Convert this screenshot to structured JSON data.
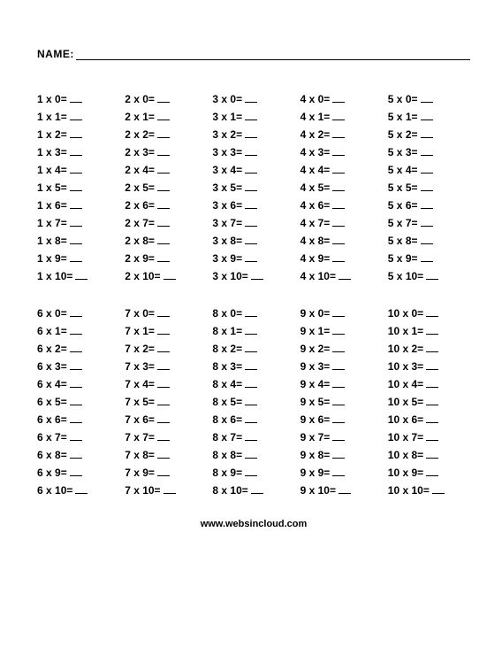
{
  "name_label": "NAME:",
  "footer": "www.websincloud.com",
  "op_symbol": "x",
  "eq_symbol": "=",
  "font_size_pt": 9,
  "font_weight": "bold",
  "text_color": "#000000",
  "background_color": "#ffffff",
  "blocks": [
    {
      "columns": [
        {
          "multiplier": 1,
          "multiplicands": [
            0,
            1,
            2,
            3,
            4,
            5,
            6,
            7,
            8,
            9,
            10
          ]
        },
        {
          "multiplier": 2,
          "multiplicands": [
            0,
            1,
            2,
            3,
            4,
            5,
            6,
            7,
            8,
            9,
            10
          ]
        },
        {
          "multiplier": 3,
          "multiplicands": [
            0,
            1,
            2,
            3,
            4,
            5,
            6,
            7,
            8,
            9,
            10
          ]
        },
        {
          "multiplier": 4,
          "multiplicands": [
            0,
            1,
            2,
            3,
            4,
            5,
            6,
            7,
            8,
            9,
            10
          ]
        },
        {
          "multiplier": 5,
          "multiplicands": [
            0,
            1,
            2,
            3,
            4,
            5,
            6,
            7,
            8,
            9,
            10
          ]
        }
      ]
    },
    {
      "columns": [
        {
          "multiplier": 6,
          "multiplicands": [
            0,
            1,
            2,
            3,
            4,
            5,
            6,
            7,
            8,
            9,
            10
          ]
        },
        {
          "multiplier": 7,
          "multiplicands": [
            0,
            1,
            2,
            3,
            4,
            5,
            6,
            7,
            8,
            9,
            10
          ]
        },
        {
          "multiplier": 8,
          "multiplicands": [
            0,
            1,
            2,
            3,
            4,
            5,
            6,
            7,
            8,
            9,
            10
          ]
        },
        {
          "multiplier": 9,
          "multiplicands": [
            0,
            1,
            2,
            3,
            4,
            5,
            6,
            7,
            8,
            9,
            10
          ]
        },
        {
          "multiplier": 10,
          "multiplicands": [
            0,
            1,
            2,
            3,
            4,
            5,
            6,
            7,
            8,
            9,
            10
          ]
        }
      ]
    }
  ]
}
